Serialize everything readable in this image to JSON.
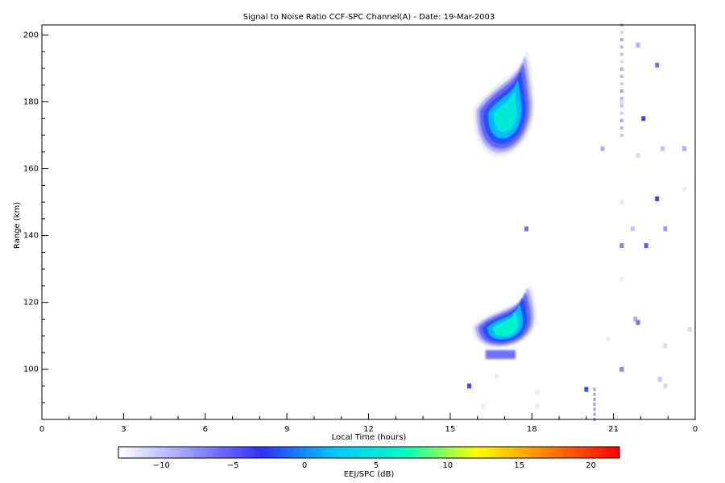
{
  "chart_data": {
    "type": "heatmap",
    "title": "Signal to Noise Ratio CCF-SPC Channel(A) - Date: 19-Mar-2003",
    "xlabel": "Local Time (hours)",
    "ylabel": "Range (km)",
    "xlim": [
      0,
      24
    ],
    "ylim": [
      85,
      203
    ],
    "x_ticks": [
      "0",
      "3",
      "6",
      "9",
      "12",
      "15",
      "18",
      "21",
      "0"
    ],
    "y_ticks": [
      "100",
      "120",
      "140",
      "160",
      "180",
      "200"
    ],
    "colorbar": {
      "label": "EEJ/SPC (dB)",
      "range": [
        -13,
        22
      ],
      "ticks": [
        "-10",
        "-5",
        "0",
        "5",
        "10",
        "15",
        "20"
      ],
      "colormap": [
        "#ffffff",
        "#9a9aff",
        "#3030ff",
        "#00c8ff",
        "#00ffc0",
        "#ffff00",
        "#ff8000",
        "#ff0000"
      ]
    },
    "regions": [
      {
        "x": [
          15.8,
          18.3
        ],
        "y": [
          163,
          196
        ],
        "peak_db": 5,
        "description": "upper echo region"
      },
      {
        "x": [
          15.8,
          18.3
        ],
        "y": [
          102,
          126
        ],
        "peak_db": 6,
        "description": "lower echo region"
      }
    ],
    "cells": [
      {
        "x": 21.3,
        "y": 180,
        "db": -11
      },
      {
        "x": 21.3,
        "y": 150,
        "db": -12
      },
      {
        "x": 21.9,
        "y": 197,
        "db": -9
      },
      {
        "x": 22.6,
        "y": 191,
        "db": -6
      },
      {
        "x": 22.1,
        "y": 175,
        "db": -4
      },
      {
        "x": 22.8,
        "y": 166,
        "db": -10
      },
      {
        "x": 23.6,
        "y": 166,
        "db": -9
      },
      {
        "x": 21.9,
        "y": 164,
        "db": -11
      },
      {
        "x": 20.6,
        "y": 166,
        "db": -9
      },
      {
        "x": 22.6,
        "y": 151,
        "db": -4
      },
      {
        "x": 23.6,
        "y": 154,
        "db": -12
      },
      {
        "x": 21.7,
        "y": 142,
        "db": -10
      },
      {
        "x": 22.9,
        "y": 142,
        "db": -8
      },
      {
        "x": 21.3,
        "y": 137,
        "db": -7
      },
      {
        "x": 22.2,
        "y": 137,
        "db": -5
      },
      {
        "x": 17.8,
        "y": 142,
        "db": -6
      },
      {
        "x": 21.3,
        "y": 127,
        "db": -12
      },
      {
        "x": 21.8,
        "y": 115,
        "db": -9
      },
      {
        "x": 21.9,
        "y": 114,
        "db": -6
      },
      {
        "x": 23.8,
        "y": 112,
        "db": -11
      },
      {
        "x": 20.8,
        "y": 109,
        "db": -12
      },
      {
        "x": 22.9,
        "y": 107,
        "db": -11
      },
      {
        "x": 21.3,
        "y": 100,
        "db": -7
      },
      {
        "x": 22.7,
        "y": 97,
        "db": -10
      },
      {
        "x": 22.9,
        "y": 95,
        "db": -11
      },
      {
        "x": 20.0,
        "y": 94,
        "db": -4
      },
      {
        "x": 15.7,
        "y": 95,
        "db": -4
      },
      {
        "x": 16.7,
        "y": 98,
        "db": -12
      },
      {
        "x": 16.2,
        "y": 89,
        "db": -12
      },
      {
        "x": 18.2,
        "y": 89,
        "db": -12
      },
      {
        "x": 18.2,
        "y": 93,
        "db": -12
      }
    ]
  }
}
